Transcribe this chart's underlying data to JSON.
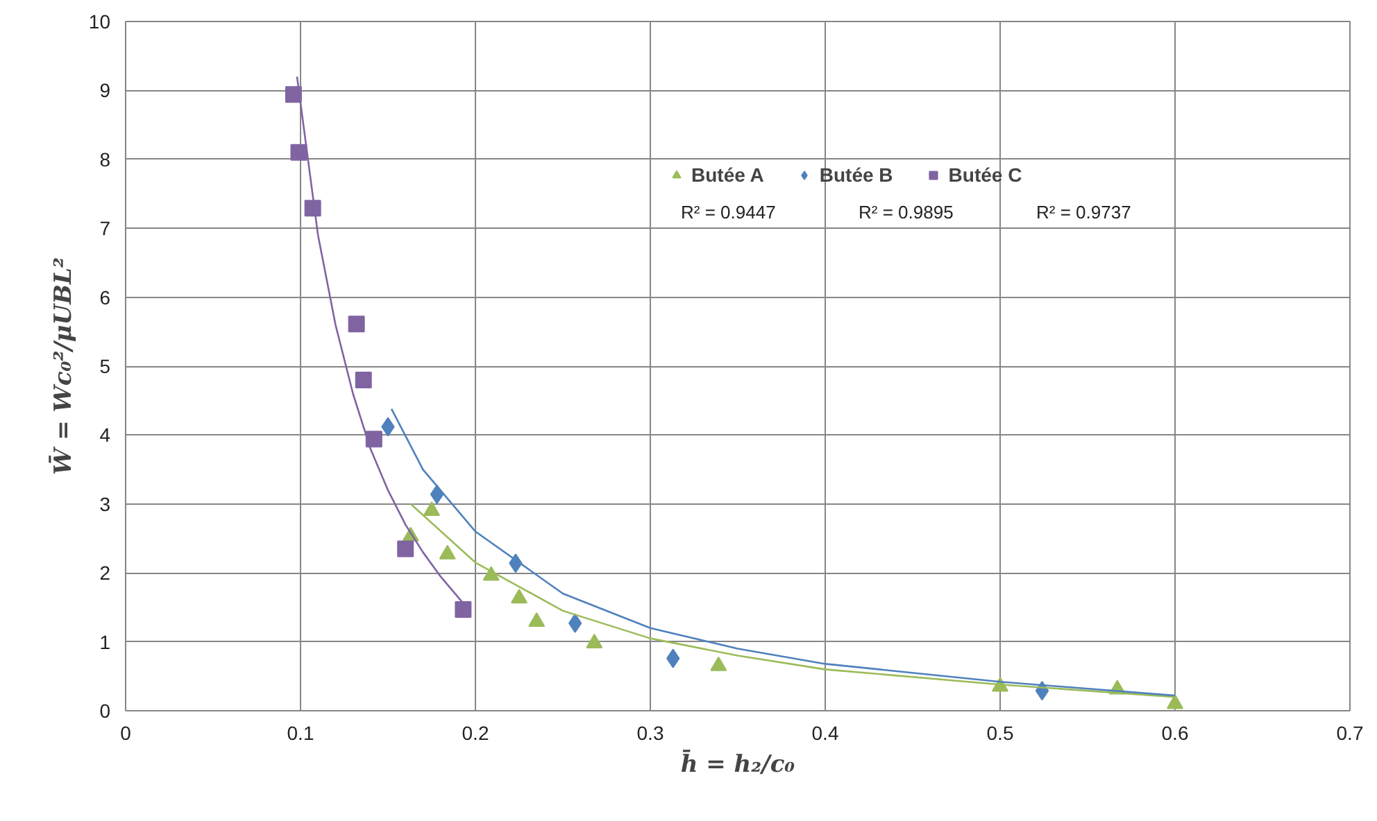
{
  "chart_data": {
    "type": "scatter",
    "xlabel": "h̄ = h₂/c₀",
    "ylabel": "W̄ = Wc₀²/μUBL²",
    "xlim": [
      0,
      0.7
    ],
    "ylim": [
      0,
      10
    ],
    "xticks": [
      0,
      0.1,
      0.2,
      0.3,
      0.4,
      0.5,
      0.6,
      0.7
    ],
    "yticks": [
      0,
      1,
      2,
      3,
      4,
      5,
      6,
      7,
      8,
      9,
      10
    ],
    "grid": true,
    "legend": "top right",
    "series": [
      {
        "name": "Butée A",
        "color": "#9bbb59",
        "marker": "triangle",
        "x": [
          0.163,
          0.175,
          0.184,
          0.209,
          0.225,
          0.235,
          0.268,
          0.339,
          0.5,
          0.567,
          0.6
        ],
        "values": [
          2.53,
          2.9,
          2.27,
          1.96,
          1.63,
          1.29,
          0.98,
          0.65,
          0.35,
          0.31,
          0.1
        ]
      },
      {
        "name": "Butée B",
        "color": "#4f81bd",
        "marker": "diamond",
        "x": [
          0.15,
          0.178,
          0.223,
          0.257,
          0.313,
          0.524
        ],
        "values": [
          4.12,
          3.14,
          2.14,
          1.27,
          0.76,
          0.29
        ]
      },
      {
        "name": "Butée C",
        "color": "#8064a2",
        "marker": "square",
        "x": [
          0.096,
          0.099,
          0.107,
          0.132,
          0.136,
          0.142,
          0.16,
          0.193
        ],
        "values": [
          8.94,
          8.1,
          7.29,
          5.61,
          4.8,
          3.94,
          2.35,
          1.47
        ]
      },
      {
        "type": "line",
        "color": "#9bbb59",
        "x": [
          0.163,
          0.2,
          0.25,
          0.3,
          0.35,
          0.4,
          0.5,
          0.6
        ],
        "values": [
          3.0,
          2.15,
          1.45,
          1.05,
          0.8,
          0.6,
          0.38,
          0.2
        ]
      },
      {
        "type": "line",
        "color": "#4f81bd",
        "x": [
          0.152,
          0.17,
          0.2,
          0.25,
          0.3,
          0.35,
          0.4,
          0.5,
          0.6
        ],
        "values": [
          4.38,
          3.5,
          2.6,
          1.7,
          1.2,
          0.9,
          0.68,
          0.42,
          0.22
        ]
      },
      {
        "type": "line",
        "color": "#8064a2",
        "x": [
          0.098,
          0.11,
          0.12,
          0.13,
          0.14,
          0.15,
          0.16,
          0.17,
          0.18,
          0.195
        ],
        "values": [
          9.2,
          6.9,
          5.6,
          4.6,
          3.8,
          3.2,
          2.7,
          2.3,
          1.95,
          1.5
        ]
      }
    ],
    "annotations": [
      "R² = 0.9447",
      "R² = 0.9895",
      "R² = 0.9737"
    ]
  }
}
